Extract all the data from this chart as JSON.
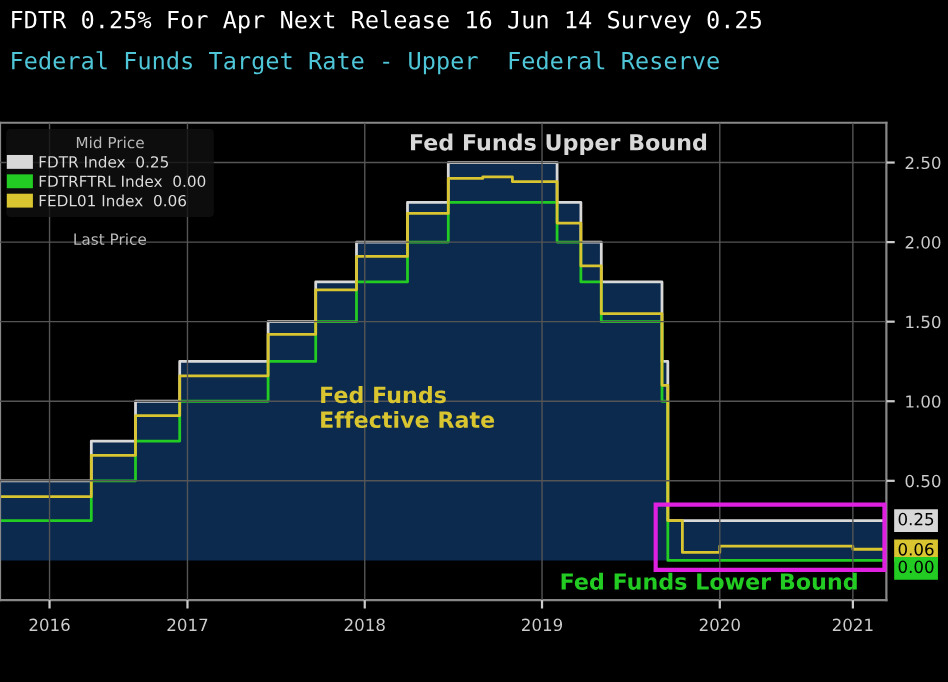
{
  "chart_data": {
    "type": "step",
    "title": "FDTR 0.25% For Apr Next Release 16 Jun 14 Survey 0.25",
    "subtitle": "Federal Funds Target Rate - Upper  Federal Reserve",
    "legend_title": "Mid Price",
    "annotations": [
      "Fed Funds Upper Bound",
      "Fed Funds Lower Bound",
      "Fed Funds\nEffective Rate",
      "Last Price"
    ],
    "series": [
      {
        "type": "area",
        "color": "#0b2a4e",
        "x": [
          "2016-06-10",
          "2016-12-15",
          "2017-03-16",
          "2017-06-15",
          "2017-12-14",
          "2018-03-22",
          "2018-06-14",
          "2018-09-27",
          "2018-12-20",
          "2019-08-01",
          "2019-09-19",
          "2019-10-31",
          "2020-03-04",
          "2020-03-16",
          "2021-06-09"
        ],
        "values": [
          0.5,
          0.75,
          1.0,
          1.25,
          1.5,
          1.75,
          2.0,
          2.25,
          2.5,
          2.25,
          2.0,
          1.75,
          1.25,
          0.25,
          0.25
        ]
      },
      {
        "name": "FDTR Index  0.25",
        "color": "#d8d8d8",
        "x": [
          "2016-06-10",
          "2016-12-15",
          "2017-03-16",
          "2017-06-15",
          "2017-12-14",
          "2018-03-22",
          "2018-06-14",
          "2018-09-27",
          "2018-12-20",
          "2019-08-01",
          "2019-09-19",
          "2019-10-31",
          "2020-03-04",
          "2020-03-16",
          "2021-06-09"
        ],
        "values": [
          0.5,
          0.75,
          1.0,
          1.25,
          1.5,
          1.75,
          2.0,
          2.25,
          2.5,
          2.25,
          2.0,
          1.75,
          1.25,
          0.25,
          0.25
        ],
        "value_labels": [
          null,
          null,
          null,
          null,
          null,
          null,
          null,
          null,
          null,
          null,
          null,
          null,
          null,
          null,
          "0.25"
        ]
      },
      {
        "name": "FDTRFTRL Index  0.00",
        "color": "#22cc22",
        "x": [
          "2016-06-10",
          "2016-12-15",
          "2017-03-16",
          "2017-06-15",
          "2017-12-14",
          "2018-03-22",
          "2018-06-14",
          "2018-09-27",
          "2018-12-20",
          "2019-08-01",
          "2019-09-19",
          "2019-10-31",
          "2020-03-04",
          "2020-03-16",
          "2021-06-09"
        ],
        "values": [
          0.25,
          0.5,
          0.75,
          1.0,
          1.25,
          1.5,
          1.75,
          2.0,
          2.25,
          2.0,
          1.75,
          1.5,
          1.0,
          0.0,
          0.0
        ],
        "value_labels": [
          null,
          null,
          null,
          null,
          null,
          null,
          null,
          null,
          null,
          null,
          null,
          null,
          null,
          null,
          "0.00"
        ]
      },
      {
        "name": "FEDL01 Index  0.06",
        "color": "#d9c530",
        "x": [
          "2016-06-10",
          "2016-12-15",
          "2017-03-16",
          "2017-06-15",
          "2017-12-14",
          "2018-03-22",
          "2018-06-14",
          "2018-09-27",
          "2018-12-20",
          "2019-03-01",
          "2019-05-01",
          "2019-08-01",
          "2019-09-19",
          "2019-10-31",
          "2020-03-04",
          "2020-03-16",
          "2020-04-15",
          "2020-07-01",
          "2020-10-01",
          "2021-01-01",
          "2021-04-01",
          "2021-06-09"
        ],
        "values": [
          0.4,
          0.66,
          0.91,
          1.16,
          1.42,
          1.7,
          1.91,
          2.18,
          2.4,
          2.41,
          2.38,
          2.12,
          1.85,
          1.55,
          1.1,
          0.25,
          0.05,
          0.09,
          0.09,
          0.09,
          0.07,
          0.06
        ],
        "value_labels": [
          null,
          null,
          null,
          null,
          null,
          null,
          null,
          null,
          null,
          null,
          null,
          null,
          null,
          null,
          null,
          null,
          null,
          null,
          null,
          null,
          null,
          "0.06"
        ]
      }
    ],
    "xlim": [
      "2016-06-10",
      "2021-06-09"
    ],
    "xticks": [
      {
        "value": "2016-09-20",
        "label": "2016"
      },
      {
        "value": "2017-07-01",
        "label": "2017"
      },
      {
        "value": "2018-07-01",
        "label": "2018"
      },
      {
        "value": "2019-07-01",
        "label": "2019"
      },
      {
        "value": "2020-07-01",
        "label": "2020"
      },
      {
        "value": "2021-04-01",
        "label": "2021"
      }
    ],
    "ylim": [
      -0.25,
      2.75
    ],
    "yticks": [
      {
        "value": 0.5,
        "label": "0.50"
      },
      {
        "value": 1.0,
        "label": "1.00"
      },
      {
        "value": 1.5,
        "label": "1.50"
      },
      {
        "value": 2.0,
        "label": "2.00"
      },
      {
        "value": 2.5,
        "label": "2.50"
      }
    ],
    "grid": true,
    "legend": "top left"
  }
}
